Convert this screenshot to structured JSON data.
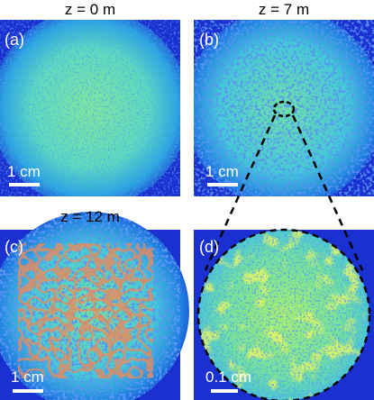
{
  "panels": [
    {
      "title": "z = 0 m",
      "label": "(a)",
      "scale_bar": "1 cm"
    },
    {
      "title": "z = 7 m",
      "label": "(b)",
      "scale_bar": "1 cm"
    },
    {
      "title": "z = 12 m",
      "label": "(c)",
      "scale_bar": "1 cm"
    },
    {
      "label": "(d)",
      "scale_bar": "0.1 cm"
    }
  ]
}
